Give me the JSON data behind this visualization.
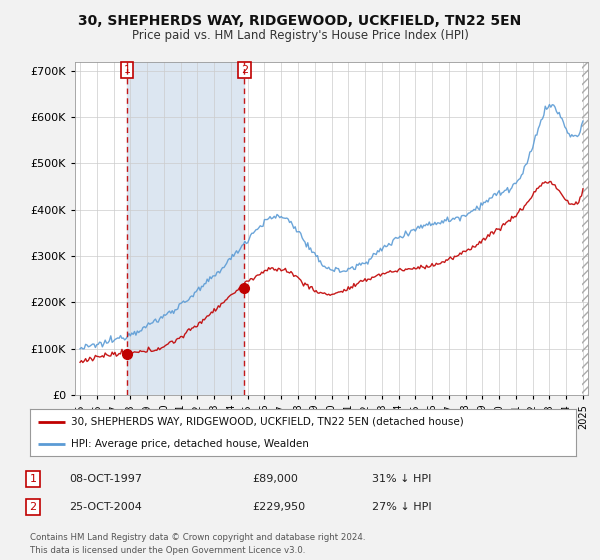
{
  "title": "30, SHEPHERDS WAY, RIDGEWOOD, UCKFIELD, TN22 5EN",
  "subtitle": "Price paid vs. HM Land Registry's House Price Index (HPI)",
  "sale1_date": "08-OCT-1997",
  "sale1_price": 89000,
  "sale1_year": 1997.792,
  "sale1_label": "1",
  "sale1_pct": "31% ↓ HPI",
  "sale2_date": "25-OCT-2004",
  "sale2_price": 229950,
  "sale2_year": 2004.808,
  "sale2_label": "2",
  "sale2_pct": "27% ↓ HPI",
  "legend_line1": "30, SHEPHERDS WAY, RIDGEWOOD, UCKFIELD, TN22 5EN (detached house)",
  "legend_line2": "HPI: Average price, detached house, Wealden",
  "footer1": "Contains HM Land Registry data © Crown copyright and database right 2024.",
  "footer2": "This data is licensed under the Open Government Licence v3.0.",
  "hpi_color": "#5b9bd5",
  "price_color": "#c00000",
  "shade_color": "#dce6f1",
  "background_color": "#f2f2f2",
  "plot_bg_color": "#ffffff",
  "ylim": [
    0,
    720000
  ],
  "yticks": [
    0,
    100000,
    200000,
    300000,
    400000,
    500000,
    600000,
    700000
  ],
  "xlim_start": 1994.7,
  "xlim_end": 2025.3,
  "hatch_start": 2024.917
}
